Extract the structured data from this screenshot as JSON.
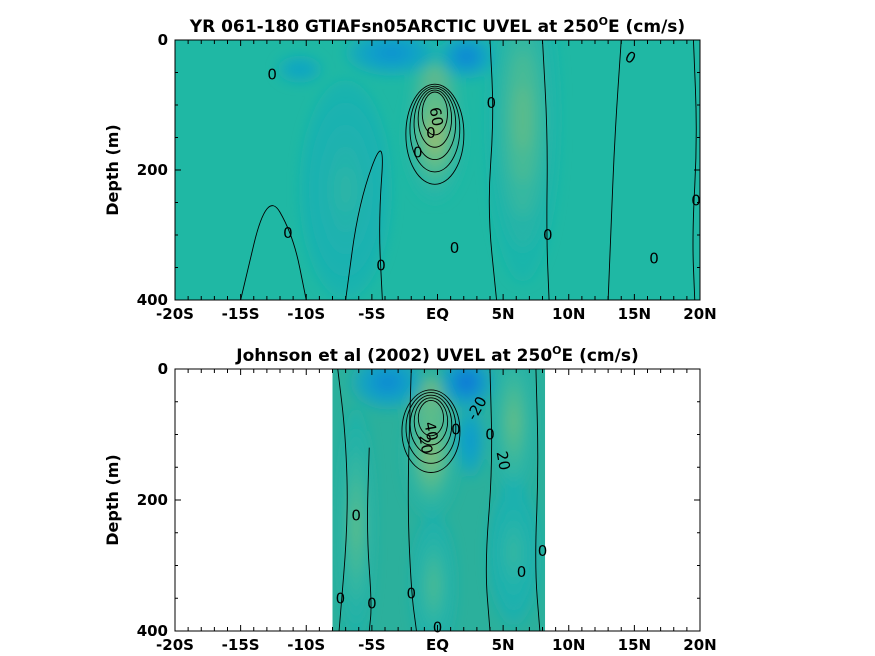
{
  "chart_data": [
    {
      "type": "heatmap",
      "title_main": "YR 061-180 GTIAFsn05ARCTIC UVEL at 250",
      "title_sup": "O",
      "title_tail": "E (cm/s)",
      "xlabel": "",
      "ylabel": "Depth (m)",
      "xticks": [
        "-20S",
        "-15S",
        "-10S",
        "-5S",
        "EQ",
        "5N",
        "10N",
        "15N",
        "20N"
      ],
      "yticks": [
        "0",
        "200",
        "400"
      ],
      "xlim": [
        -20,
        20
      ],
      "ylim": [
        0,
        400
      ],
      "data_xlim": [
        -20,
        20
      ],
      "colormap": "parula",
      "background_color": "#1fb8a4",
      "blobs": [
        {
          "x": -0.2,
          "y": 105,
          "value": 1.0,
          "sx": 1.3,
          "sy": 55
        },
        {
          "x": -0.2,
          "y": 150,
          "value": 0.45,
          "sx": 1.6,
          "sy": 70
        },
        {
          "x": 6.5,
          "y": 120,
          "value": 0.28,
          "sx": 2.0,
          "sy": 180
        },
        {
          "x": -7,
          "y": 230,
          "value": 0.12,
          "sx": 2.5,
          "sy": 120
        },
        {
          "x": 2.2,
          "y": 25,
          "value": -0.35,
          "sx": 1.5,
          "sy": 25
        },
        {
          "x": -3.5,
          "y": 20,
          "value": -0.25,
          "sx": 2.5,
          "sy": 25
        },
        {
          "x": -10.5,
          "y": 45,
          "value": -0.1,
          "sx": 1.2,
          "sy": 15
        }
      ],
      "contour_labels": [
        {
          "text": "0",
          "x": -12.6,
          "y": 53,
          "angle": 0
        },
        {
          "text": "0",
          "x": 14.7,
          "y": 27,
          "angle": 30
        },
        {
          "text": "0",
          "x": 4.1,
          "y": 97,
          "angle": 0
        },
        {
          "text": "0",
          "x": -1.5,
          "y": 173,
          "angle": 0
        },
        {
          "text": "0",
          "x": -11.4,
          "y": 297,
          "angle": 0
        },
        {
          "text": "0",
          "x": -4.3,
          "y": 347,
          "angle": 0
        },
        {
          "text": "0",
          "x": 1.3,
          "y": 320,
          "angle": 0
        },
        {
          "text": "0",
          "x": 8.4,
          "y": 300,
          "angle": 0
        },
        {
          "text": "0",
          "x": 16.5,
          "y": 336,
          "angle": 0
        },
        {
          "text": "0",
          "x": 19.7,
          "y": 247,
          "angle": 0
        },
        {
          "text": "0",
          "x": -0.5,
          "y": 143,
          "angle": 0
        },
        {
          "text": "60",
          "x": -0.1,
          "y": 118,
          "angle": 80
        }
      ]
    },
    {
      "type": "heatmap",
      "title_main": "Johnson et al (2002) UVEL at 250",
      "title_sup": "O",
      "title_tail": "E (cm/s)",
      "xlabel": "",
      "ylabel": "Depth (m)",
      "xticks": [
        "-20S",
        "-15S",
        "-10S",
        "-5S",
        "EQ",
        "5N",
        "10N",
        "15N",
        "20N"
      ],
      "yticks": [
        "0",
        "200",
        "400"
      ],
      "xlim": [
        -20,
        20
      ],
      "ylim": [
        0,
        400
      ],
      "data_xlim": [
        -8,
        8.2
      ],
      "colormap": "parula",
      "background_color": "#2bb09c",
      "blobs": [
        {
          "x": -0.5,
          "y": 70,
          "value": 1.0,
          "sx": 1.3,
          "sy": 45
        },
        {
          "x": -0.5,
          "y": 130,
          "value": 0.4,
          "sx": 1.5,
          "sy": 70
        },
        {
          "x": 5.8,
          "y": 80,
          "value": 0.3,
          "sx": 1.2,
          "sy": 90
        },
        {
          "x": 5.8,
          "y": 280,
          "value": 0.15,
          "sx": 1.4,
          "sy": 80
        },
        {
          "x": -6.2,
          "y": 240,
          "value": 0.28,
          "sx": 1.0,
          "sy": 130
        },
        {
          "x": -0.3,
          "y": 330,
          "value": 0.22,
          "sx": 1.2,
          "sy": 80
        },
        {
          "x": 2.2,
          "y": 20,
          "value": -0.45,
          "sx": 1.5,
          "sy": 30
        },
        {
          "x": -3.8,
          "y": 20,
          "value": -0.3,
          "sx": 2.0,
          "sy": 30
        },
        {
          "x": 2.5,
          "y": 110,
          "value": -0.2,
          "sx": 0.8,
          "sy": 40
        }
      ],
      "contour_labels": [
        {
          "text": "0",
          "x": -6.2,
          "y": 224,
          "angle": 0
        },
        {
          "text": "0",
          "x": -7.4,
          "y": 350,
          "angle": 0
        },
        {
          "text": "0",
          "x": -5.0,
          "y": 358,
          "angle": 0
        },
        {
          "text": "0",
          "x": -2.0,
          "y": 343,
          "angle": 0
        },
        {
          "text": "0",
          "x": 0.0,
          "y": 395,
          "angle": 0
        },
        {
          "text": "0",
          "x": 6.4,
          "y": 310,
          "angle": 0
        },
        {
          "text": "0",
          "x": 8.0,
          "y": 278,
          "angle": 0
        },
        {
          "text": "0",
          "x": 4.0,
          "y": 100,
          "angle": 0
        },
        {
          "text": "0",
          "x": 1.4,
          "y": 92,
          "angle": 0
        },
        {
          "text": "-20",
          "x": 3.0,
          "y": 60,
          "angle": -60
        },
        {
          "text": "20",
          "x": 5.0,
          "y": 140,
          "angle": 80
        },
        {
          "text": "40",
          "x": -0.5,
          "y": 95,
          "angle": 80
        },
        {
          "text": "20",
          "x": -0.9,
          "y": 115,
          "angle": 80
        }
      ]
    }
  ]
}
